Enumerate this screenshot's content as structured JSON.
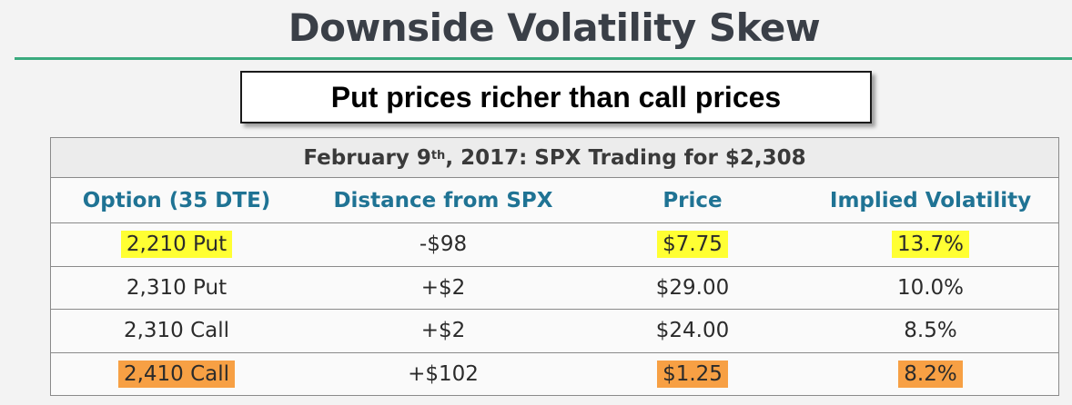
{
  "slide": {
    "title": "Downside Volatility Skew",
    "callout": "Put prices richer than call prices"
  },
  "table": {
    "caption_prefix": "February 9",
    "caption_sup": "th",
    "caption_suffix": ", 2017: SPX Trading for $2,308",
    "headers": [
      "Option (35 DTE)",
      "Distance from SPX",
      "Price",
      "Implied Volatility"
    ],
    "rows": [
      [
        "2,210 Put",
        "-$98",
        "$7.75",
        "13.7%"
      ],
      [
        "2,310 Put",
        "+$2",
        "$29.00",
        "10.0%"
      ],
      [
        "2,310 Call",
        "+$2",
        "$24.00",
        "8.5%"
      ],
      [
        "2,410 Call",
        "+$102",
        "$1.25",
        "8.2%"
      ]
    ]
  },
  "colors": {
    "header_text": "#1f7394",
    "title_rule": "#3aaa7e",
    "highlight_put": "#ffff33",
    "highlight_call": "#f7a044"
  }
}
